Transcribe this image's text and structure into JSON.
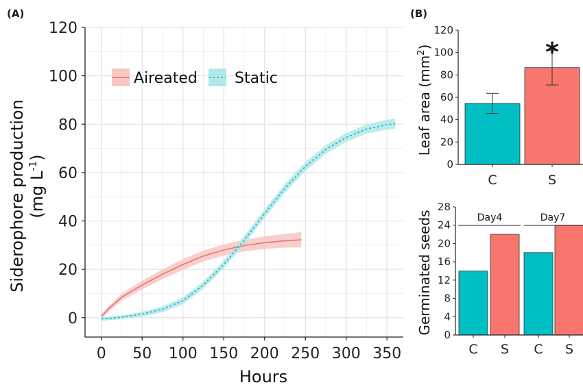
{
  "panel_labels": {
    "a": "(A)",
    "b": "(B)"
  },
  "chart_data": [
    {
      "type": "line",
      "panel": "(A)",
      "xlabel": "Hours",
      "ylabel_line1": "Siderophore production",
      "ylabel_line2": "(mg L",
      "ylabel_sup": "-1",
      "ylabel_close": ")",
      "xlim": [
        -20,
        370
      ],
      "ylim": [
        -8,
        120
      ],
      "xticks": [
        0,
        50,
        100,
        150,
        200,
        250,
        300,
        350
      ],
      "yticks": [
        0,
        20,
        40,
        60,
        80,
        100,
        120
      ],
      "grid": true,
      "legend_position": "top-left",
      "series": [
        {
          "name": "Aireated",
          "color": "#e8736b",
          "band_color": "#f7c7c4",
          "line_style": "solid",
          "x": [
            0,
            10,
            25,
            50,
            75,
            100,
            125,
            150,
            175,
            200,
            225,
            245
          ],
          "y": [
            0.5,
            4,
            8.5,
            13.5,
            18,
            22,
            25.5,
            28,
            29.8,
            31,
            31.8,
            32.2
          ],
          "band": [
            1,
            1.2,
            1.5,
            1.8,
            2,
            2.2,
            2.2,
            2.3,
            2.4,
            2.6,
            2.8,
            3.2
          ]
        },
        {
          "name": "Static",
          "color": "#1fb8b8",
          "band_color": "#b2e8ea",
          "line_style": "dashed",
          "x": [
            0,
            25,
            50,
            75,
            100,
            125,
            150,
            175,
            200,
            225,
            250,
            275,
            300,
            325,
            350,
            360
          ],
          "y": [
            -0.5,
            0.2,
            1.5,
            3.5,
            7,
            13.5,
            22,
            32,
            43,
            53.5,
            62.5,
            69.5,
            74.5,
            78,
            79.8,
            80.2
          ],
          "band": [
            0.8,
            0.8,
            1,
            1.2,
            1.4,
            1.5,
            1.6,
            1.7,
            1.8,
            1.8,
            1.8,
            1.8,
            1.8,
            1.9,
            2,
            2.1
          ]
        }
      ]
    },
    {
      "type": "bar",
      "panel": "(B) top",
      "ylabel": "Leaf area (mm",
      "ylabel_sup": "2",
      "ylabel_close": ")",
      "categories": [
        "C",
        "S"
      ],
      "values": [
        54.5,
        86.5
      ],
      "errors": [
        9,
        15.5
      ],
      "colors": [
        "#00bfc4",
        "#f8766d"
      ],
      "ylim": [
        0,
        120
      ],
      "yticks": [
        0,
        20,
        40,
        60,
        80,
        100,
        120
      ],
      "annotation": "*"
    },
    {
      "type": "bar",
      "panel": "(B) bottom",
      "ylabel": "Germinated seeds",
      "groups": [
        {
          "name": "Day4",
          "categories": [
            "C",
            "S"
          ],
          "values": [
            14,
            22
          ]
        },
        {
          "name": "Day7",
          "categories": [
            "C",
            "S"
          ],
          "values": [
            18,
            24
          ]
        }
      ],
      "colors": [
        "#00bfc4",
        "#f8766d"
      ],
      "ylim": [
        0,
        28
      ],
      "yticks": [
        0,
        4,
        8,
        12,
        16,
        20,
        24,
        28
      ]
    }
  ]
}
